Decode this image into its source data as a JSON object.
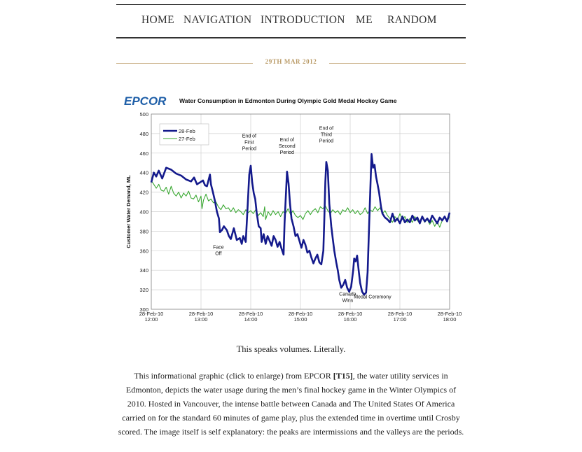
{
  "nav": {
    "items": [
      {
        "label": "HOME"
      },
      {
        "label": "NAVIGATION"
      },
      {
        "label": "INTRODUCTION"
      },
      {
        "label": "ME"
      },
      {
        "label": "RANDOM"
      }
    ]
  },
  "post": {
    "date": "29TH MAR 2012",
    "caption": "This speaks volumes. Literally.",
    "body_before": "This informational graphic (click to enlarge) from EPCOR ",
    "body_link": "[T15]",
    "body_after": ", the water utility services in Edmonton, depicts the water usage during the men’s final hockey game in the Winter Olympics of 2010. Hosted in Vancouver, the intense battle between Canada and The United States Of America carried on for the standard 60 minutes of game play, plus the extended time in overtime until Crosby scored. The image itself is self explanatory: the peaks are intermissions and the valleys are the periods."
  },
  "colors": {
    "accent": "#b99a66",
    "logo": "#1f5fa8",
    "series1": "#141a8c",
    "series2": "#3aa832"
  },
  "chart_data": {
    "type": "line",
    "logo": "EPCOR",
    "title": "Water Consumption in Edmonton During Olympic Gold Medal Hockey Game",
    "xlabel": "",
    "ylabel": "Customer Water Demand, ML",
    "ylim": [
      300,
      500
    ],
    "yticks": [
      300,
      320,
      340,
      360,
      380,
      400,
      420,
      440,
      460,
      480,
      500
    ],
    "xlim": [
      12,
      18
    ],
    "xticks": [
      {
        "x": 12,
        "date": "28-Feb-10",
        "time": "12:00"
      },
      {
        "x": 13,
        "date": "28-Feb-10",
        "time": "13:00"
      },
      {
        "x": 14,
        "date": "28-Feb-10",
        "time": "14:00"
      },
      {
        "x": 15,
        "date": "28-Feb-10",
        "time": "15:00"
      },
      {
        "x": 16,
        "date": "28-Feb-10",
        "time": "16:00"
      },
      {
        "x": 17,
        "date": "28-Feb-10",
        "time": "17:00"
      },
      {
        "x": 18,
        "date": "28-Feb-10",
        "time": "18:00"
      }
    ],
    "grid": true,
    "legend": "top-left",
    "series": [
      {
        "name": "28-Feb",
        "color": "#141a8c",
        "width": 2.6,
        "points": [
          [
            12,
            430
          ],
          [
            12.05,
            440
          ],
          [
            12.1,
            436
          ],
          [
            12.15,
            442
          ],
          [
            12.22,
            434
          ],
          [
            12.3,
            445
          ],
          [
            12.4,
            443
          ],
          [
            12.5,
            439
          ],
          [
            12.6,
            437
          ],
          [
            12.7,
            433
          ],
          [
            12.8,
            431
          ],
          [
            12.86,
            435
          ],
          [
            12.92,
            428
          ],
          [
            12.98,
            430
          ],
          [
            13.04,
            432
          ],
          [
            13.08,
            427
          ],
          [
            13.12,
            426
          ],
          [
            13.18,
            438
          ],
          [
            13.2,
            428
          ],
          [
            13.24,
            420
          ],
          [
            13.28,
            411
          ],
          [
            13.32,
            400
          ],
          [
            13.36,
            393
          ],
          [
            13.38,
            379
          ],
          [
            13.42,
            381
          ],
          [
            13.46,
            385
          ],
          [
            13.52,
            381
          ],
          [
            13.56,
            375
          ],
          [
            13.6,
            372
          ],
          [
            13.66,
            383
          ],
          [
            13.72,
            371
          ],
          [
            13.78,
            373
          ],
          [
            13.82,
            367
          ],
          [
            13.85,
            375
          ],
          [
            13.9,
            369
          ],
          [
            13.94,
            407
          ],
          [
            13.97,
            438
          ],
          [
            14.0,
            447
          ],
          [
            14.03,
            430
          ],
          [
            14.06,
            419
          ],
          [
            14.09,
            413
          ],
          [
            14.12,
            399
          ],
          [
            14.16,
            385
          ],
          [
            14.2,
            383
          ],
          [
            14.22,
            369
          ],
          [
            14.26,
            377
          ],
          [
            14.3,
            367
          ],
          [
            14.34,
            375
          ],
          [
            14.38,
            370
          ],
          [
            14.42,
            365
          ],
          [
            14.46,
            375
          ],
          [
            14.5,
            371
          ],
          [
            14.54,
            364
          ],
          [
            14.58,
            369
          ],
          [
            14.62,
            362
          ],
          [
            14.66,
            356
          ],
          [
            14.68,
            388
          ],
          [
            14.71,
            420
          ],
          [
            14.73,
            441
          ],
          [
            14.76,
            429
          ],
          [
            14.79,
            408
          ],
          [
            14.82,
            393
          ],
          [
            14.86,
            385
          ],
          [
            14.9,
            375
          ],
          [
            14.94,
            377
          ],
          [
            14.98,
            370
          ],
          [
            15.02,
            363
          ],
          [
            15.06,
            371
          ],
          [
            15.1,
            366
          ],
          [
            15.14,
            358
          ],
          [
            15.18,
            360
          ],
          [
            15.22,
            353
          ],
          [
            15.26,
            347
          ],
          [
            15.3,
            352
          ],
          [
            15.34,
            356
          ],
          [
            15.38,
            348
          ],
          [
            15.42,
            346
          ],
          [
            15.46,
            360
          ],
          [
            15.48,
            393
          ],
          [
            15.5,
            430
          ],
          [
            15.52,
            451
          ],
          [
            15.55,
            442
          ],
          [
            15.58,
            408
          ],
          [
            15.62,
            385
          ],
          [
            15.65,
            372
          ],
          [
            15.68,
            360
          ],
          [
            15.72,
            348
          ],
          [
            15.75,
            340
          ],
          [
            15.78,
            330
          ],
          [
            15.82,
            322
          ],
          [
            15.86,
            325
          ],
          [
            15.9,
            330
          ],
          [
            15.94,
            322
          ],
          [
            15.98,
            318
          ],
          [
            16.02,
            323
          ],
          [
            16.06,
            340
          ],
          [
            16.08,
            352
          ],
          [
            16.11,
            349
          ],
          [
            16.14,
            355
          ],
          [
            16.17,
            340
          ],
          [
            16.2,
            327
          ],
          [
            16.24,
            318
          ],
          [
            16.28,
            315
          ],
          [
            16.32,
            317
          ],
          [
            16.35,
            338
          ],
          [
            16.38,
            385
          ],
          [
            16.41,
            430
          ],
          [
            16.43,
            459
          ],
          [
            16.46,
            445
          ],
          [
            16.49,
            448
          ],
          [
            16.52,
            436
          ],
          [
            16.55,
            428
          ],
          [
            16.58,
            420
          ],
          [
            16.62,
            405
          ],
          [
            16.65,
            398
          ],
          [
            16.7,
            394
          ],
          [
            16.75,
            392
          ],
          [
            16.8,
            389
          ],
          [
            16.85,
            398
          ],
          [
            16.9,
            390
          ],
          [
            16.95,
            393
          ],
          [
            17.0,
            388
          ],
          [
            17.05,
            395
          ],
          [
            17.1,
            389
          ],
          [
            17.15,
            392
          ],
          [
            17.2,
            389
          ],
          [
            17.25,
            396
          ],
          [
            17.3,
            391
          ],
          [
            17.35,
            394
          ],
          [
            17.4,
            388
          ],
          [
            17.45,
            395
          ],
          [
            17.5,
            390
          ],
          [
            17.55,
            393
          ],
          [
            17.6,
            389
          ],
          [
            17.65,
            396
          ],
          [
            17.7,
            392
          ],
          [
            17.75,
            388
          ],
          [
            17.8,
            394
          ],
          [
            17.85,
            391
          ],
          [
            17.9,
            395
          ],
          [
            17.95,
            390
          ],
          [
            18.0,
            399
          ]
        ]
      },
      {
        "name": "27-Feb",
        "color": "#3aa832",
        "width": 1.1,
        "points": [
          [
            12,
            432
          ],
          [
            12.05,
            428
          ],
          [
            12.1,
            424
          ],
          [
            12.15,
            428
          ],
          [
            12.2,
            422
          ],
          [
            12.25,
            421
          ],
          [
            12.3,
            425
          ],
          [
            12.35,
            418
          ],
          [
            12.4,
            426
          ],
          [
            12.45,
            419
          ],
          [
            12.5,
            416
          ],
          [
            12.55,
            420
          ],
          [
            12.6,
            414
          ],
          [
            12.65,
            419
          ],
          [
            12.7,
            416
          ],
          [
            12.75,
            421
          ],
          [
            12.8,
            414
          ],
          [
            12.85,
            413
          ],
          [
            12.9,
            417
          ],
          [
            12.95,
            410
          ],
          [
            13.0,
            416
          ],
          [
            13.02,
            403
          ],
          [
            13.05,
            412
          ],
          [
            13.1,
            418
          ],
          [
            13.15,
            411
          ],
          [
            13.2,
            413
          ],
          [
            13.25,
            409
          ],
          [
            13.3,
            410
          ],
          [
            13.35,
            405
          ],
          [
            13.4,
            402
          ],
          [
            13.45,
            407
          ],
          [
            13.5,
            403
          ],
          [
            13.55,
            404
          ],
          [
            13.6,
            400
          ],
          [
            13.65,
            404
          ],
          [
            13.7,
            399
          ],
          [
            13.75,
            402
          ],
          [
            13.8,
            400
          ],
          [
            13.85,
            397
          ],
          [
            13.9,
            402
          ],
          [
            13.95,
            399
          ],
          [
            14.0,
            401
          ],
          [
            14.05,
            398
          ],
          [
            14.1,
            402
          ],
          [
            14.15,
            396
          ],
          [
            14.2,
            399
          ],
          [
            14.25,
            395
          ],
          [
            14.28,
            405
          ],
          [
            14.3,
            392
          ],
          [
            14.35,
            400
          ],
          [
            14.4,
            396
          ],
          [
            14.45,
            401
          ],
          [
            14.5,
            397
          ],
          [
            14.55,
            400
          ],
          [
            14.6,
            395
          ],
          [
            14.65,
            400
          ],
          [
            14.7,
            398
          ],
          [
            14.75,
            403
          ],
          [
            14.8,
            397
          ],
          [
            14.85,
            401
          ],
          [
            14.9,
            396
          ],
          [
            14.95,
            394
          ],
          [
            15.0,
            396
          ],
          [
            15.05,
            392
          ],
          [
            15.1,
            398
          ],
          [
            15.15,
            401
          ],
          [
            15.2,
            397
          ],
          [
            15.25,
            401
          ],
          [
            15.3,
            403
          ],
          [
            15.35,
            399
          ],
          [
            15.4,
            405
          ],
          [
            15.45,
            403
          ],
          [
            15.5,
            406
          ],
          [
            15.55,
            401
          ],
          [
            15.6,
            398
          ],
          [
            15.65,
            402
          ],
          [
            15.7,
            399
          ],
          [
            15.75,
            401
          ],
          [
            15.8,
            397
          ],
          [
            15.85,
            402
          ],
          [
            15.9,
            400
          ],
          [
            15.95,
            404
          ],
          [
            16.0,
            399
          ],
          [
            16.05,
            402
          ],
          [
            16.1,
            398
          ],
          [
            16.15,
            401
          ],
          [
            16.2,
            397
          ],
          [
            16.25,
            399
          ],
          [
            16.3,
            404
          ],
          [
            16.35,
            398
          ],
          [
            16.4,
            402
          ],
          [
            16.45,
            400
          ],
          [
            16.5,
            405
          ],
          [
            16.55,
            401
          ],
          [
            16.6,
            404
          ],
          [
            16.65,
            398
          ],
          [
            16.7,
            401
          ],
          [
            16.75,
            396
          ],
          [
            16.8,
            393
          ],
          [
            16.85,
            389
          ],
          [
            16.9,
            395
          ],
          [
            16.95,
            391
          ],
          [
            17.0,
            398
          ],
          [
            17.05,
            392
          ],
          [
            17.1,
            395
          ],
          [
            17.15,
            389
          ],
          [
            17.2,
            393
          ],
          [
            17.25,
            389
          ],
          [
            17.3,
            395
          ],
          [
            17.35,
            391
          ],
          [
            17.4,
            388
          ],
          [
            17.45,
            394
          ],
          [
            17.5,
            389
          ],
          [
            17.55,
            392
          ],
          [
            17.6,
            387
          ],
          [
            17.65,
            391
          ],
          [
            17.7,
            385
          ],
          [
            17.75,
            390
          ],
          [
            17.8,
            384
          ],
          [
            17.85,
            391
          ],
          [
            17.9,
            394
          ],
          [
            17.95,
            390
          ],
          [
            18.0,
            395
          ]
        ]
      }
    ],
    "annotations": [
      {
        "text": [
          "Face",
          "Off"
        ],
        "x": 13.35,
        "y": 362
      },
      {
        "text": [
          "End of",
          "First",
          "Period"
        ],
        "x": 13.97,
        "y": 476
      },
      {
        "text": [
          "End of",
          "Second",
          "Period"
        ],
        "x": 14.73,
        "y": 472
      },
      {
        "text": [
          "End of",
          "Third",
          "Period"
        ],
        "x": 15.52,
        "y": 484
      },
      {
        "text": [
          "Canada",
          "Wins"
        ],
        "x": 15.95,
        "y": 314
      },
      {
        "text": [
          "Medal Ceremony"
        ],
        "x": 16.45,
        "y": 311
      }
    ]
  }
}
